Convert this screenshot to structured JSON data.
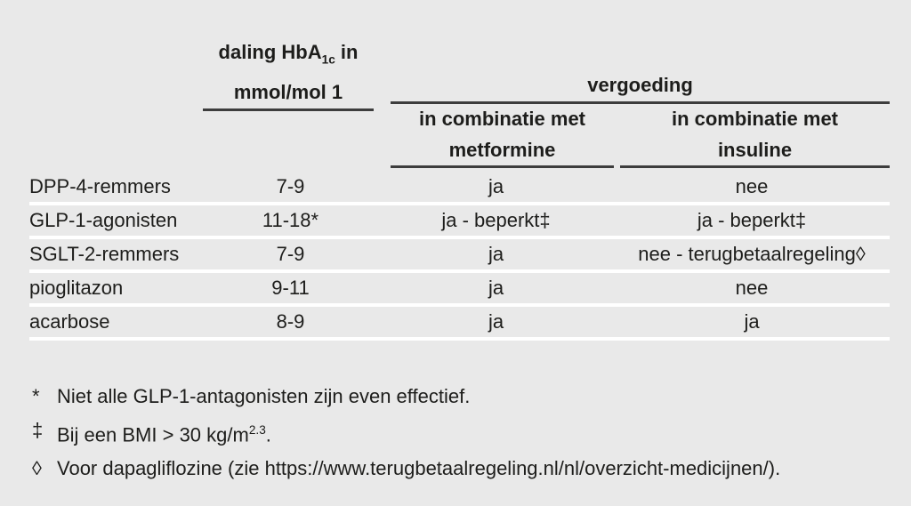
{
  "colors": {
    "bg": "#e9e9e9",
    "text": "#1d1d1b",
    "rule": "#3d3d3d",
    "separator": "#ffffff"
  },
  "table": {
    "col2_header": {
      "line1_pre": "daling HbA",
      "line1_sub": "1c",
      "line1_post": " in",
      "line2": "mmol/mol 1"
    },
    "group_header": "vergoeding",
    "col3_header": {
      "line1": "in combinatie met",
      "line2": "metformine"
    },
    "col4_header": {
      "line1": "in combinatie met",
      "line2": "insuline"
    },
    "rows": [
      {
        "name": "DPP-4-remmers",
        "daling": "7-9",
        "metformine": "ja",
        "insuline": "nee"
      },
      {
        "name": "GLP-1-agonisten",
        "daling": "11-18*",
        "metformine": "ja - beperkt‡",
        "insuline": "ja - beperkt‡"
      },
      {
        "name": "SGLT-2-remmers",
        "daling": "7-9",
        "metformine": "ja",
        "insuline": "nee - terugbetaalregeling◊"
      },
      {
        "name": "pioglitazon",
        "daling": "9-11",
        "metformine": "ja",
        "insuline": "nee"
      },
      {
        "name": "acarbose",
        "daling": "8-9",
        "metformine": "ja",
        "insuline": "ja"
      }
    ]
  },
  "footnotes": {
    "fn1": {
      "marker": "*",
      "text": "Niet alle GLP-1-antagonisten zijn even effectief."
    },
    "fn2": {
      "marker": "‡",
      "text_pre": "Bij een BMI > 30 kg/m",
      "sup": "2.3",
      "text_post": "."
    },
    "fn3": {
      "marker": "◊",
      "text": "Voor dapagliflozine (zie https://www.terugbetaalregeling.nl/nl/overzicht-medicijnen/)."
    }
  }
}
